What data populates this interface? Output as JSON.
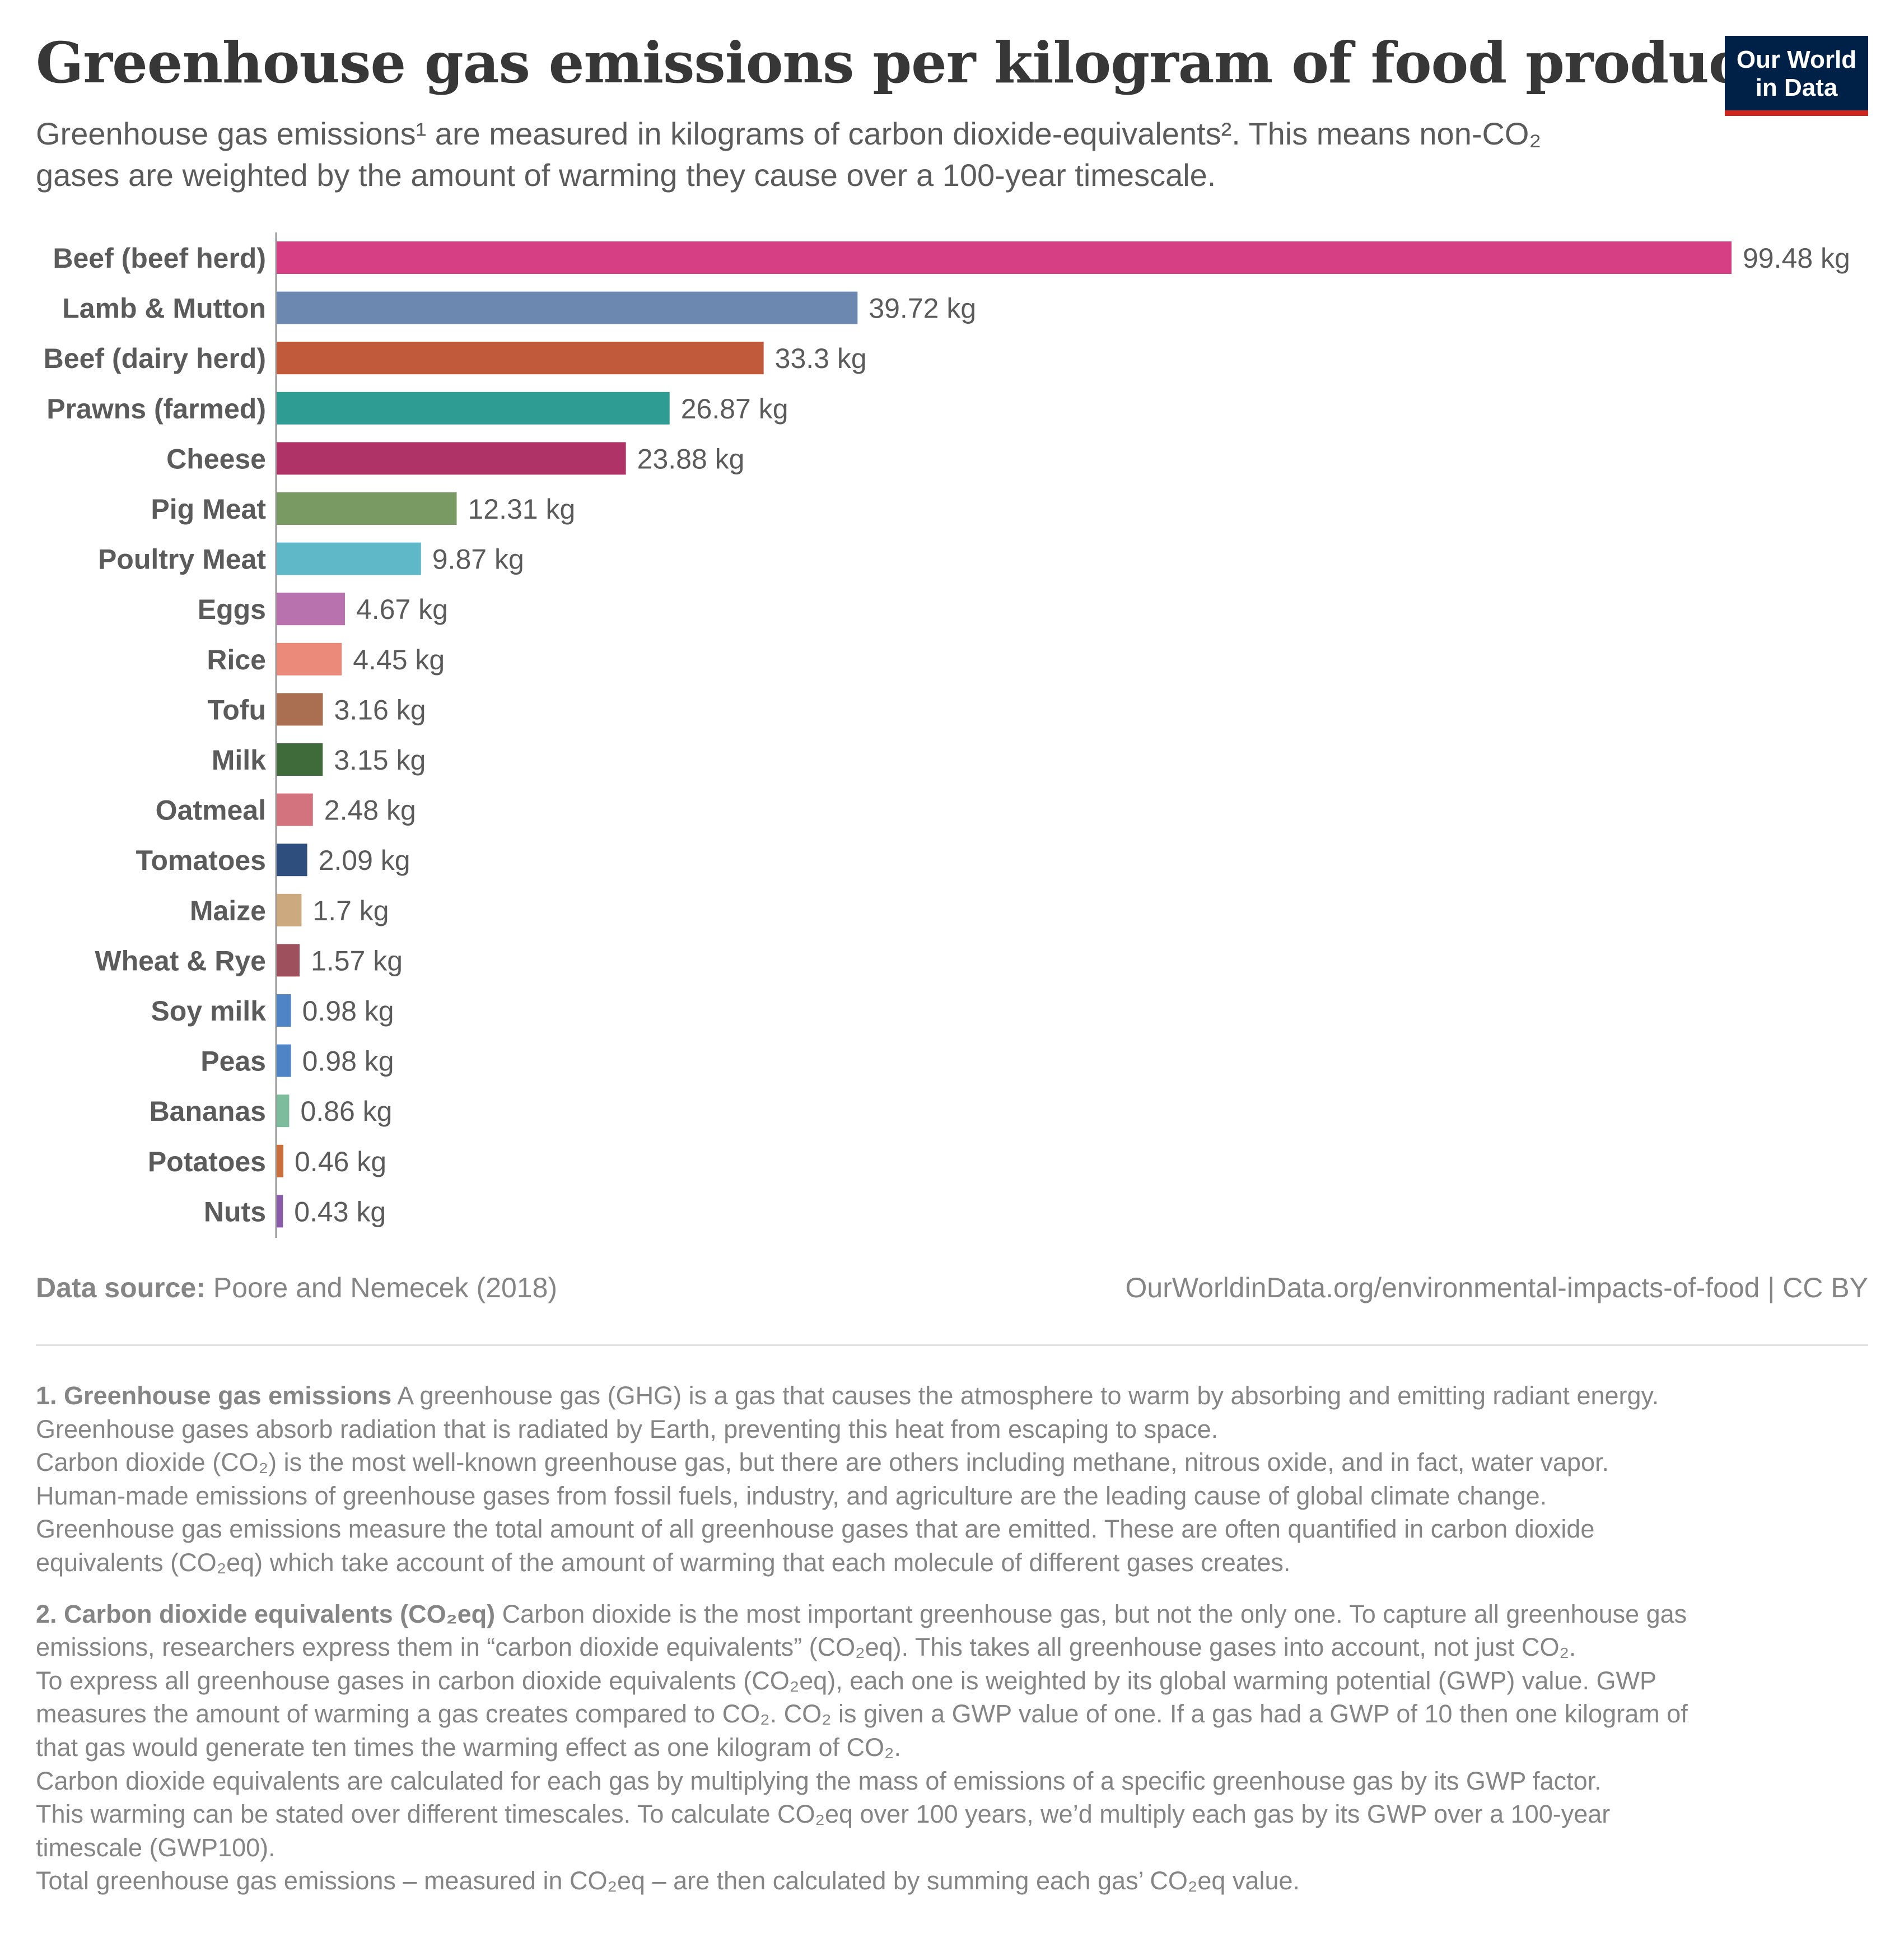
{
  "header": {
    "title": "Greenhouse gas emissions per kilogram of food product",
    "subtitle_line1": "Greenhouse gas emissions¹ are measured in kilograms of carbon dioxide-equivalents². This means non-CO₂",
    "subtitle_line2": "gases are weighted by the amount of warming they cause over a 100-year timescale."
  },
  "logo": {
    "line1": "Our World",
    "line2": "in Data",
    "bg_color": "#002147",
    "accent_color": "#ce261e"
  },
  "chart_data": {
    "type": "bar",
    "orientation": "horizontal",
    "unit_suffix": " kg",
    "categories": [
      "Beef (beef herd)",
      "Lamb & Mutton",
      "Beef (dairy herd)",
      "Prawns (farmed)",
      "Cheese",
      "Pig Meat",
      "Poultry Meat",
      "Eggs",
      "Rice",
      "Tofu",
      "Milk",
      "Oatmeal",
      "Tomatoes",
      "Maize",
      "Wheat & Rye",
      "Soy milk",
      "Peas",
      "Bananas",
      "Potatoes",
      "Nuts"
    ],
    "values": [
      99.48,
      39.72,
      33.3,
      26.87,
      23.88,
      12.31,
      9.87,
      4.67,
      4.45,
      3.16,
      3.15,
      2.48,
      2.09,
      1.7,
      1.57,
      0.98,
      0.98,
      0.86,
      0.46,
      0.43
    ],
    "value_labels": [
      "99.48 kg",
      "39.72 kg",
      "33.3 kg",
      "26.87 kg",
      "23.88 kg",
      "12.31 kg",
      "9.87 kg",
      "4.67 kg",
      "4.45 kg",
      "3.16 kg",
      "3.15 kg",
      "2.48 kg",
      "2.09 kg",
      "1.7 kg",
      "1.57 kg",
      "0.98 kg",
      "0.98 kg",
      "0.86 kg",
      "0.46 kg",
      "0.43 kg"
    ],
    "colors": [
      "#d63f83",
      "#6d88b0",
      "#c15a3b",
      "#2f9c94",
      "#b03368",
      "#7a9a64",
      "#5eb8c8",
      "#b872ae",
      "#eb8a7a",
      "#a96f50",
      "#3f6b3b",
      "#d2737e",
      "#2e4e7e",
      "#cda97f",
      "#9e515c",
      "#4f84c6",
      "#4f84c6",
      "#7dbd9d",
      "#c86f3b",
      "#8a5ba8"
    ],
    "xlim": [
      0,
      99.48
    ],
    "grid": false,
    "legend": "none"
  },
  "footer": {
    "source_label": "Data source:",
    "source_text": "Poore and Nemecek (2018)",
    "url_text": "OurWorldinData.org/environmental-impacts-of-food | CC BY"
  },
  "notes": {
    "n1_title": "1. Greenhouse gas emissions",
    "n1_text": "A greenhouse gas (GHG) is a gas that causes the atmosphere to warm by absorbing and emitting radiant energy.",
    "n1_lines": [
      "Greenhouse gases absorb radiation that is radiated by Earth, preventing this heat from escaping to space.",
      "Carbon dioxide (CO₂) is the most well-known greenhouse gas, but there are others including methane, nitrous oxide, and in fact, water vapor.",
      "Human-made emissions of greenhouse gases from fossil fuels, industry, and agriculture are the leading cause of global climate change.",
      "Greenhouse gas emissions measure the total amount of all greenhouse gases that are emitted. These are often quantified in carbon dioxide",
      "equivalents (CO₂eq) which take account of the amount of warming that each molecule of different gases creates."
    ],
    "n2_title": "2. Carbon dioxide equivalents (CO₂eq)",
    "n2_text": "Carbon dioxide is the most important greenhouse gas, but not the only one. To capture all greenhouse gas",
    "n2_lines": [
      "emissions, researchers express them in “carbon dioxide equivalents” (CO₂eq). This takes all greenhouse gases into account, not just CO₂.",
      "To express all greenhouse gases in carbon dioxide equivalents (CO₂eq), each one is weighted by its global warming potential (GWP) value. GWP",
      "measures the amount of warming a gas creates compared to CO₂. CO₂ is given a GWP value of one. If a gas had a GWP of 10 then one kilogram of",
      "that gas would generate ten times the warming effect as one kilogram of CO₂.",
      "Carbon dioxide equivalents are calculated for each gas by multiplying the mass of emissions of a specific greenhouse gas by its GWP factor.",
      "This warming can be stated over different timescales. To calculate CO₂eq over 100 years, we’d multiply each gas by its GWP over a 100-year",
      "timescale (GWP100).",
      "Total greenhouse gas emissions – measured in CO₂eq – are then calculated by summing each gas’ CO₂eq value."
    ]
  }
}
